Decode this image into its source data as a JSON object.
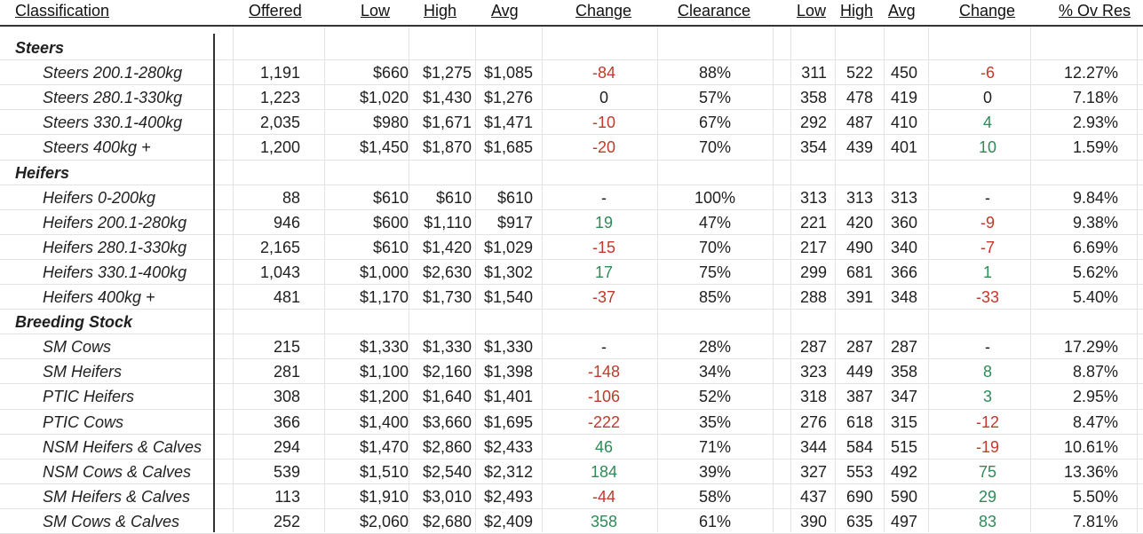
{
  "headers": {
    "classification": "Classification",
    "offered": "Offered",
    "low": "Low",
    "high": "High",
    "avg": "Avg",
    "change": "Change",
    "clearance": "Clearance",
    "low2": "Low",
    "high2": "High",
    "avg2": "Avg",
    "change2": "Change",
    "ovres": "% Ov Res"
  },
  "rows": [
    {
      "type": "section",
      "label": "Steers"
    },
    {
      "type": "item",
      "label": "Steers 200.1-280kg",
      "offered": "1,191",
      "low": "$660",
      "high": "$1,275",
      "avg": "$1,085",
      "change": "-84",
      "clearance": "88%",
      "low2": "311",
      "high2": "522",
      "avg2": "450",
      "change2": "-6",
      "ovres": "12.27%"
    },
    {
      "type": "item",
      "label": "Steers 280.1-330kg",
      "offered": "1,223",
      "low": "$1,020",
      "high": "$1,430",
      "avg": "$1,276",
      "change": "0",
      "clearance": "57%",
      "low2": "358",
      "high2": "478",
      "avg2": "419",
      "change2": "0",
      "ovres": "7.18%"
    },
    {
      "type": "item",
      "label": "Steers 330.1-400kg",
      "offered": "2,035",
      "low": "$980",
      "high": "$1,671",
      "avg": "$1,471",
      "change": "-10",
      "clearance": "67%",
      "low2": "292",
      "high2": "487",
      "avg2": "410",
      "change2": "4",
      "ovres": "2.93%"
    },
    {
      "type": "item",
      "label": "Steers 400kg +",
      "offered": "1,200",
      "low": "$1,450",
      "high": "$1,870",
      "avg": "$1,685",
      "change": "-20",
      "clearance": "70%",
      "low2": "354",
      "high2": "439",
      "avg2": "401",
      "change2": "10",
      "ovres": "1.59%"
    },
    {
      "type": "section",
      "label": "Heifers"
    },
    {
      "type": "item",
      "label": "Heifers 0-200kg",
      "offered": "88",
      "low": "$610",
      "high": "$610",
      "avg": "$610",
      "change": "-",
      "clearance": "100%",
      "low2": "313",
      "high2": "313",
      "avg2": "313",
      "change2": "-",
      "ovres": "9.84%"
    },
    {
      "type": "item",
      "label": "Heifers 200.1-280kg",
      "offered": "946",
      "low": "$600",
      "high": "$1,110",
      "avg": "$917",
      "change": "19",
      "clearance": "47%",
      "low2": "221",
      "high2": "420",
      "avg2": "360",
      "change2": "-9",
      "ovres": "9.38%"
    },
    {
      "type": "item",
      "label": "Heifers 280.1-330kg",
      "offered": "2,165",
      "low": "$610",
      "high": "$1,420",
      "avg": "$1,029",
      "change": "-15",
      "clearance": "70%",
      "low2": "217",
      "high2": "490",
      "avg2": "340",
      "change2": "-7",
      "ovres": "6.69%"
    },
    {
      "type": "item",
      "label": "Heifers 330.1-400kg",
      "offered": "1,043",
      "low": "$1,000",
      "high": "$2,630",
      "avg": "$1,302",
      "change": "17",
      "clearance": "75%",
      "low2": "299",
      "high2": "681",
      "avg2": "366",
      "change2": "1",
      "ovres": "5.62%"
    },
    {
      "type": "item",
      "label": "Heifers 400kg +",
      "offered": "481",
      "low": "$1,170",
      "high": "$1,730",
      "avg": "$1,540",
      "change": "-37",
      "clearance": "85%",
      "low2": "288",
      "high2": "391",
      "avg2": "348",
      "change2": "-33",
      "ovres": "5.40%"
    },
    {
      "type": "section",
      "label": "Breeding Stock"
    },
    {
      "type": "item",
      "label": "SM Cows",
      "offered": "215",
      "low": "$1,330",
      "high": "$1,330",
      "avg": "$1,330",
      "change": "-",
      "clearance": "28%",
      "low2": "287",
      "high2": "287",
      "avg2": "287",
      "change2": "-",
      "ovres": "17.29%"
    },
    {
      "type": "item",
      "label": "SM Heifers",
      "offered": "281",
      "low": "$1,100",
      "high": "$2,160",
      "avg": "$1,398",
      "change": "-148",
      "clearance": "34%",
      "low2": "323",
      "high2": "449",
      "avg2": "358",
      "change2": "8",
      "ovres": "8.87%"
    },
    {
      "type": "item",
      "label": "PTIC Heifers",
      "offered": "308",
      "low": "$1,200",
      "high": "$1,640",
      "avg": "$1,401",
      "change": "-106",
      "clearance": "52%",
      "low2": "318",
      "high2": "387",
      "avg2": "347",
      "change2": "3",
      "ovres": "2.95%"
    },
    {
      "type": "item",
      "label": "PTIC Cows",
      "offered": "366",
      "low": "$1,400",
      "high": "$3,660",
      "avg": "$1,695",
      "change": "-222",
      "clearance": "35%",
      "low2": "276",
      "high2": "618",
      "avg2": "315",
      "change2": "-12",
      "ovres": "8.47%"
    },
    {
      "type": "item",
      "label": "NSM Heifers & Calves",
      "offered": "294",
      "low": "$1,470",
      "high": "$2,860",
      "avg": "$2,433",
      "change": "46",
      "clearance": "71%",
      "low2": "344",
      "high2": "584",
      "avg2": "515",
      "change2": "-19",
      "ovres": "10.61%"
    },
    {
      "type": "item",
      "label": "NSM Cows & Calves",
      "offered": "539",
      "low": "$1,510",
      "high": "$2,540",
      "avg": "$2,312",
      "change": "184",
      "clearance": "39%",
      "low2": "327",
      "high2": "553",
      "avg2": "492",
      "change2": "75",
      "ovres": "13.36%"
    },
    {
      "type": "item",
      "label": "SM Heifers & Calves",
      "offered": "113",
      "low": "$1,910",
      "high": "$3,010",
      "avg": "$2,493",
      "change": "-44",
      "clearance": "58%",
      "low2": "437",
      "high2": "690",
      "avg2": "590",
      "change2": "29",
      "ovres": "5.50%"
    },
    {
      "type": "item",
      "label": "SM Cows & Calves",
      "offered": "252",
      "low": "$2,060",
      "high": "$2,680",
      "avg": "$2,409",
      "change": "358",
      "clearance": "61%",
      "low2": "390",
      "high2": "635",
      "avg2": "497",
      "change2": "83",
      "ovres": "7.81%"
    }
  ],
  "colors": {
    "negative": "#c0392b",
    "positive": "#2e8b57",
    "neutral": "#1f1f1f"
  }
}
